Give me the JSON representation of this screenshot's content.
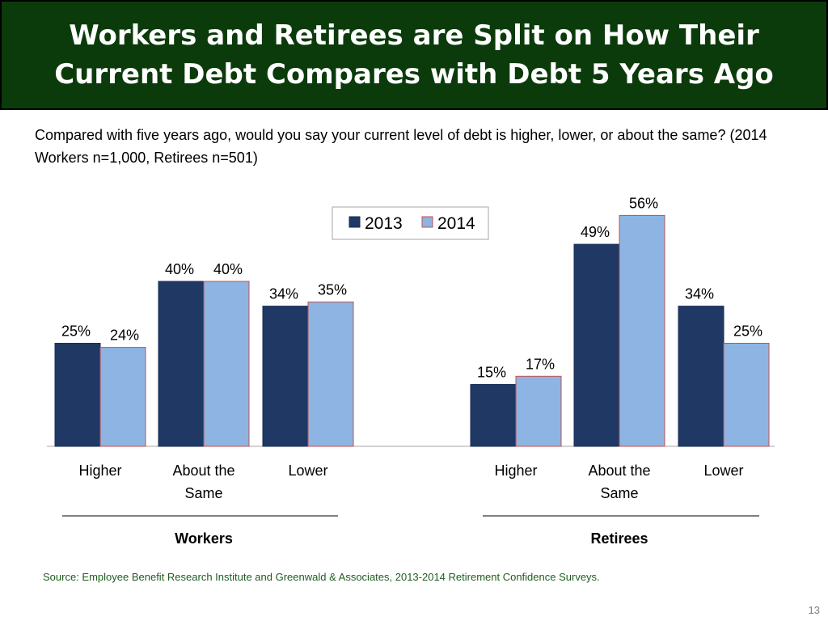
{
  "slide": {
    "title": "Workers and Retirees are Split on How Their Current Debt Compares with Debt 5 Years Ago",
    "question": "Compared with five years ago, would you say your current level of debt is higher, lower, or about the same? (2014 Workers n=1,000, Retirees n=501)",
    "source": "Source:  Employee Benefit Research Institute and Greenwald & Associates, 2013-2014 Retirement Confidence Surveys.",
    "page_number": "13"
  },
  "colors": {
    "title_bg": "#0b3b0b",
    "series_2013": "#1f3864",
    "series_2014": "#8eb4e3",
    "series_2014_border": "#c0504d",
    "source_text": "#1f5c1f"
  },
  "chart_data": {
    "type": "bar",
    "title": "",
    "ylabel": "",
    "xlabel": "",
    "ylim": [
      0,
      60
    ],
    "grid": false,
    "legend": "top-center",
    "unit": "%",
    "groups": [
      {
        "name": "Workers",
        "categories": [
          "Higher",
          "About the Same",
          "Lower"
        ]
      },
      {
        "name": "Retirees",
        "categories": [
          "Higher",
          "About the Same",
          "Lower"
        ]
      }
    ],
    "categories": [
      "Higher",
      "About the Same",
      "Lower",
      "Higher",
      "About the Same",
      "Lower"
    ],
    "category_lines": [
      [
        "Higher"
      ],
      [
        "About the",
        "Same"
      ],
      [
        "Lower"
      ],
      [
        "Higher"
      ],
      [
        "About the",
        "Same"
      ],
      [
        "Lower"
      ]
    ],
    "series": [
      {
        "name": "2013",
        "values": [
          25,
          40,
          34,
          15,
          49,
          34
        ]
      },
      {
        "name": "2014",
        "values": [
          24,
          40,
          35,
          17,
          56,
          25
        ]
      }
    ]
  }
}
